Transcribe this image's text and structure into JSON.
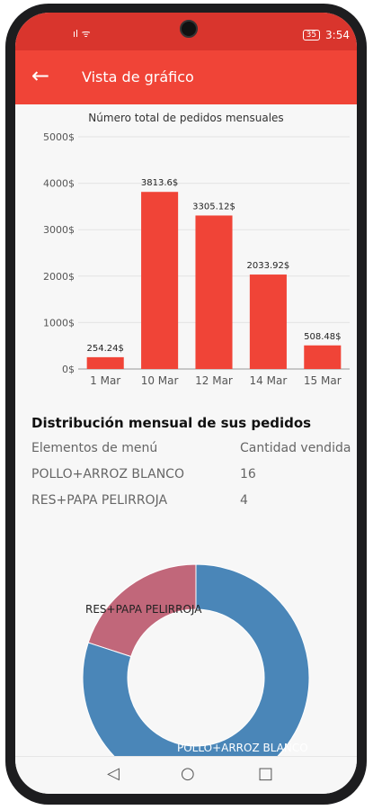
{
  "status_bar": {
    "signal": "ıl ᯤ",
    "battery": "35",
    "time": "3:54"
  },
  "app_bar": {
    "back_icon": "←",
    "title": "Vista de gráfico"
  },
  "chart_data": [
    {
      "type": "bar",
      "title": "Número total de pedidos mensuales",
      "categories": [
        "1 Mar",
        "10 Mar",
        "12 Mar",
        "14 Mar",
        "15 Mar"
      ],
      "values": [
        254.24,
        3813.6,
        3305.12,
        2033.92,
        508.48
      ],
      "value_labels": [
        "254.24$",
        "3813.6$",
        "3305.12$",
        "2033.92$",
        "508.48$"
      ],
      "ylim": [
        0,
        5000
      ],
      "y_ticks": [
        "0$",
        "1000$",
        "2000$",
        "3000$",
        "4000$",
        "5000$"
      ],
      "grid": true,
      "bar_color": "#f04437"
    },
    {
      "type": "pie",
      "categories": [
        "RES+PAPA PELIRROJA",
        "POLLO+ARROZ BLANCO"
      ],
      "values": [
        4,
        16
      ],
      "colors": [
        "#c1677a",
        "#4a86b8"
      ]
    }
  ],
  "distribution": {
    "title": "Distribución mensual de sus pedidos",
    "headers": [
      "Elementos de menú",
      "Cantidad vendida"
    ],
    "rows": [
      [
        "POLLO+ARROZ BLANCO",
        "16"
      ],
      [
        "RES+PAPA PELIRROJA",
        "4"
      ]
    ]
  },
  "nav": {
    "back": "◁",
    "home": "○",
    "recents": "□"
  }
}
